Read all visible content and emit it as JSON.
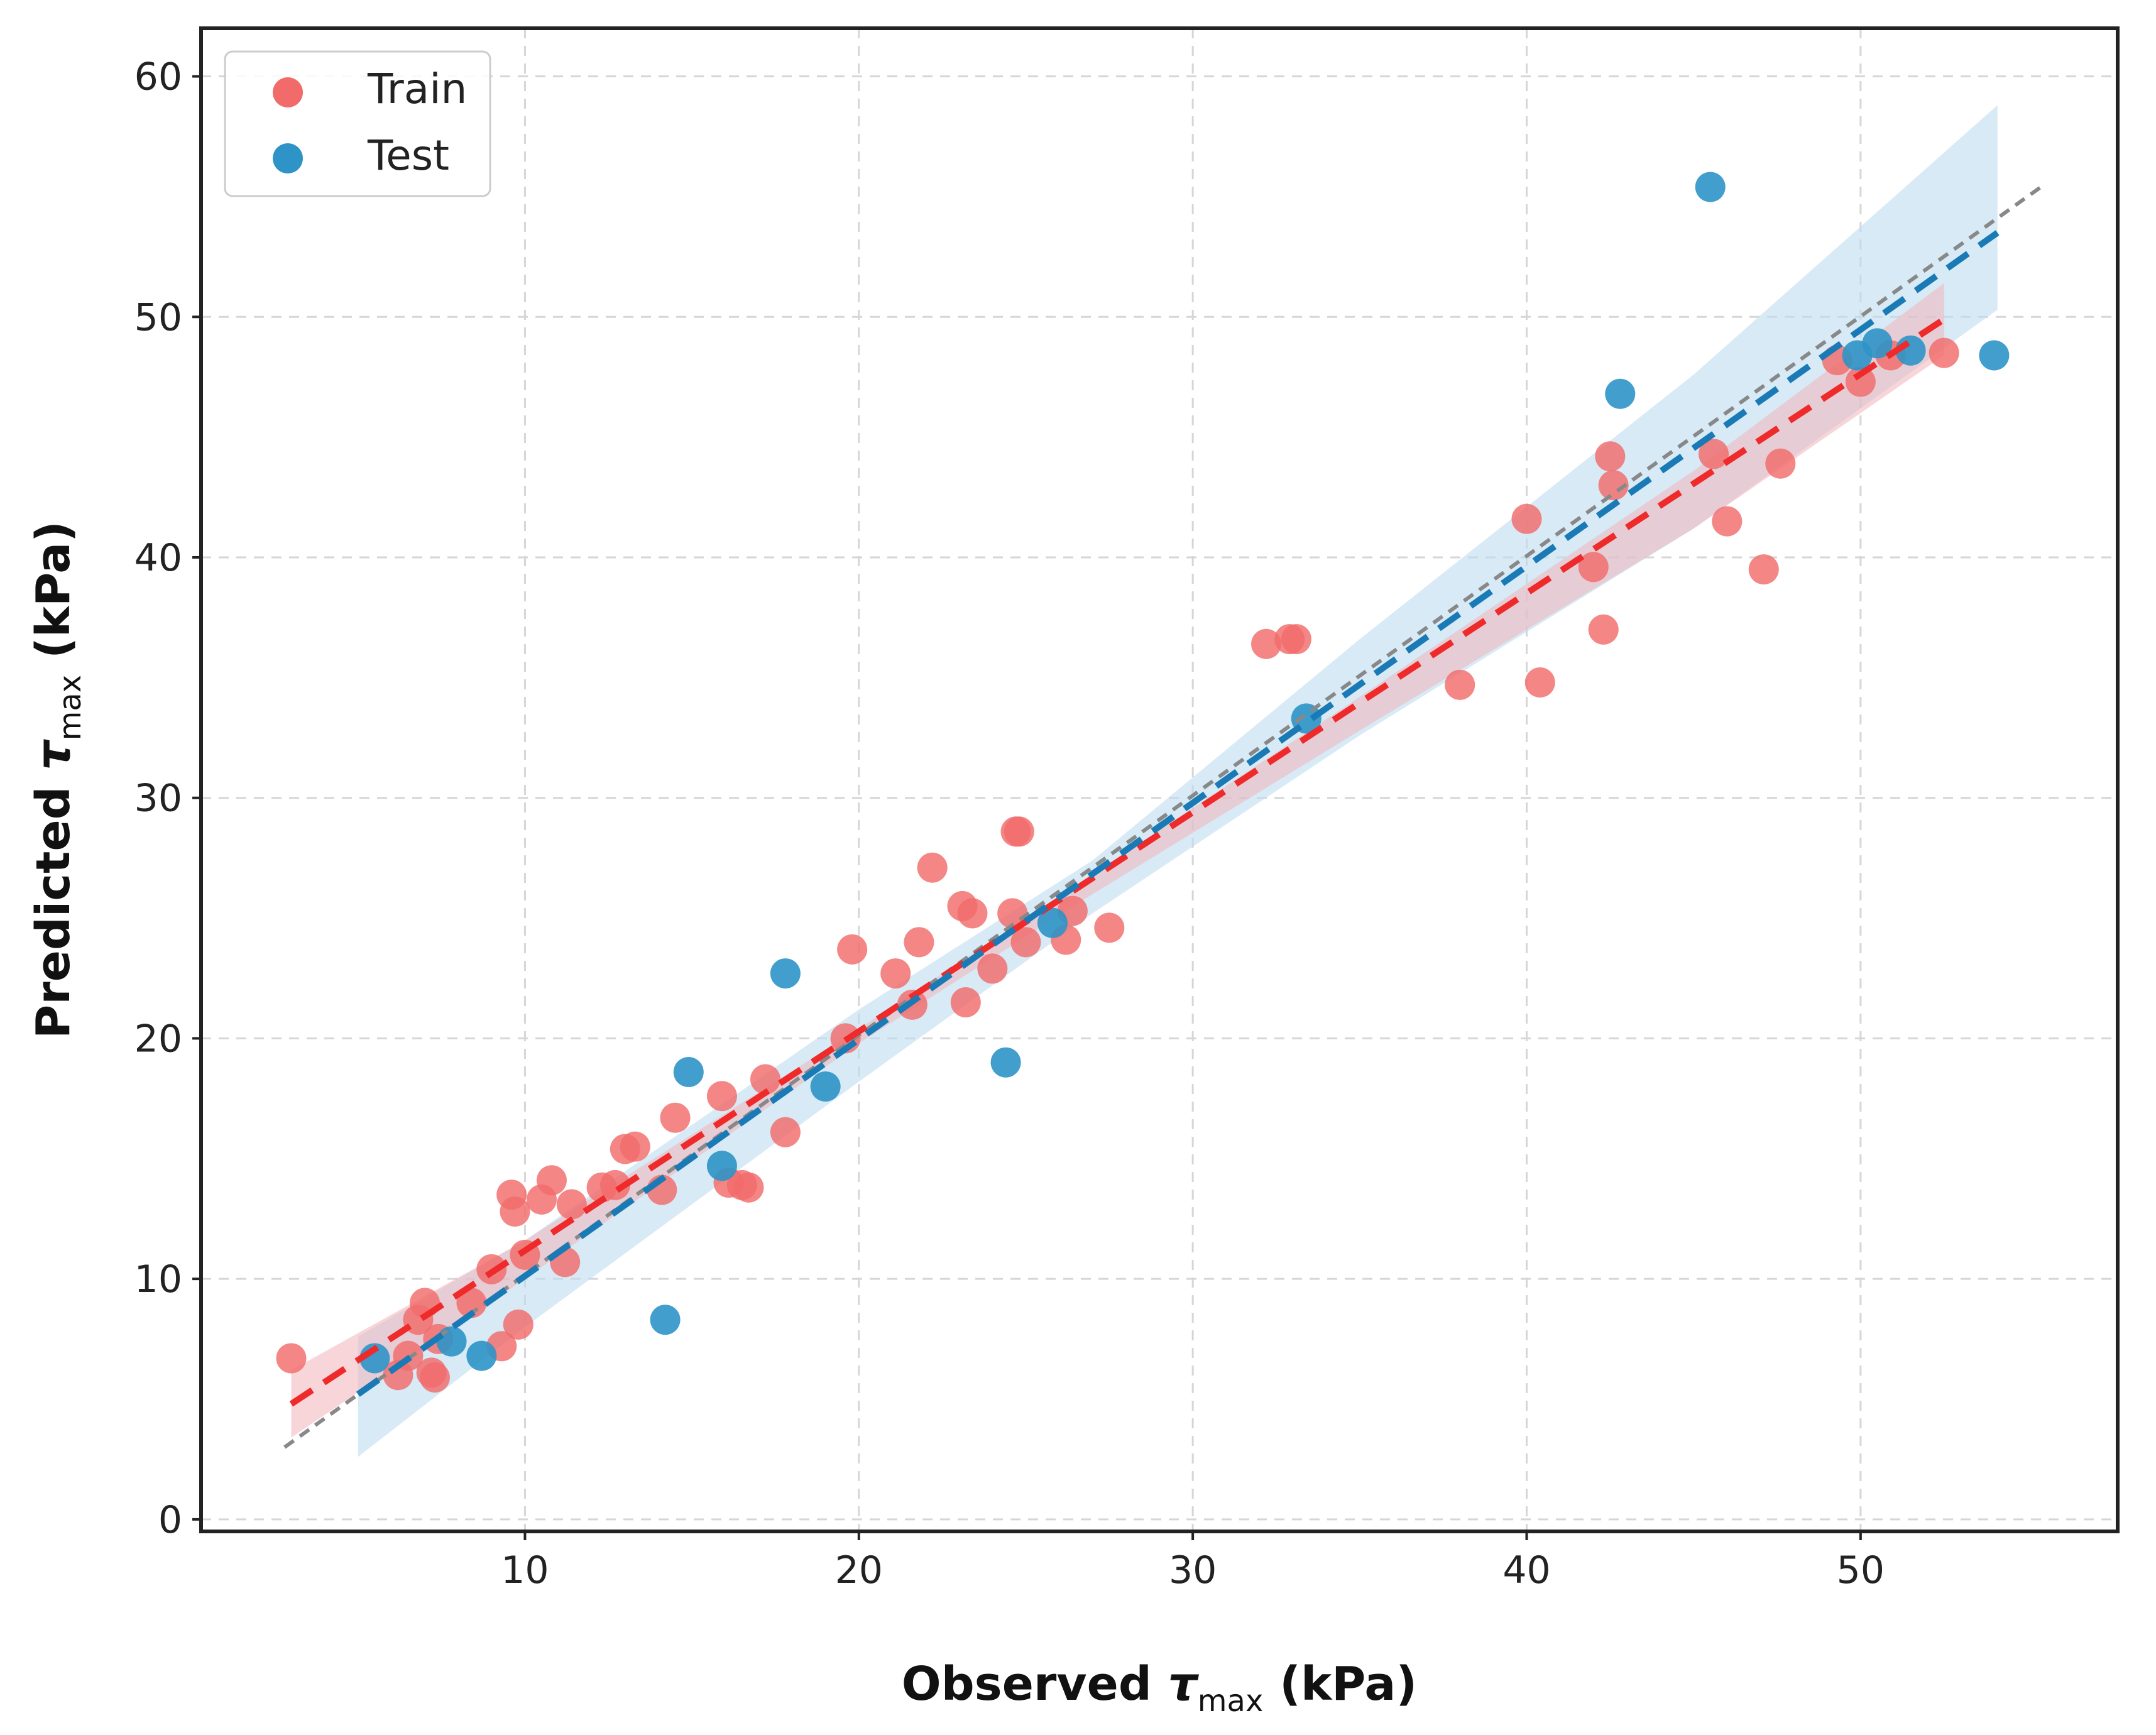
{
  "chart_data": {
    "type": "scatter",
    "title": "",
    "xlabel": {
      "prefix": "Observed ",
      "symbol": "τ",
      "subscript": "max",
      "unit": " (kPa)"
    },
    "ylabel": {
      "prefix": "Predicted ",
      "symbol": "τ",
      "subscript": "max",
      "unit": " (kPa)"
    },
    "xlim": [
      0.3,
      57.7
    ],
    "ylim": [
      -0.5,
      62
    ],
    "xticks": [
      10,
      20,
      30,
      40,
      50
    ],
    "yticks": [
      0,
      10,
      20,
      30,
      40,
      50,
      60
    ],
    "grid": true,
    "legend_position": "top-left",
    "colors": {
      "train": "#f26b6b",
      "test": "#2e93c6",
      "train_fit": "#ee2a2a",
      "test_fit": "#1a7ab5",
      "train_band": "#f3b3b8",
      "test_band": "#bcdcef",
      "identity": "#888888"
    },
    "series": [
      {
        "name": "Train",
        "points": [
          [
            3.0,
            6.7
          ],
          [
            6.2,
            6.0
          ],
          [
            6.5,
            6.8
          ],
          [
            6.8,
            8.3
          ],
          [
            7.0,
            9.0
          ],
          [
            7.2,
            6.1
          ],
          [
            7.3,
            5.9
          ],
          [
            7.4,
            7.5
          ],
          [
            8.4,
            9.0
          ],
          [
            9.0,
            10.4
          ],
          [
            9.3,
            7.2
          ],
          [
            9.6,
            13.5
          ],
          [
            9.7,
            12.8
          ],
          [
            9.8,
            8.1
          ],
          [
            10.0,
            11.0
          ],
          [
            10.5,
            13.3
          ],
          [
            10.8,
            14.1
          ],
          [
            11.2,
            10.7
          ],
          [
            11.4,
            13.1
          ],
          [
            12.3,
            13.8
          ],
          [
            12.7,
            13.9
          ],
          [
            13.0,
            15.4
          ],
          [
            13.3,
            15.5
          ],
          [
            14.1,
            13.7
          ],
          [
            14.5,
            16.7
          ],
          [
            15.9,
            17.6
          ],
          [
            16.1,
            14.0
          ],
          [
            16.5,
            13.9
          ],
          [
            16.7,
            13.8
          ],
          [
            17.2,
            18.3
          ],
          [
            17.8,
            16.1
          ],
          [
            19.6,
            20.0
          ],
          [
            19.8,
            23.7
          ],
          [
            21.1,
            22.7
          ],
          [
            21.6,
            21.4
          ],
          [
            21.8,
            24.0
          ],
          [
            22.2,
            27.1
          ],
          [
            23.1,
            25.5
          ],
          [
            23.2,
            21.5
          ],
          [
            23.4,
            25.2
          ],
          [
            24.0,
            22.9
          ],
          [
            24.6,
            25.2
          ],
          [
            24.7,
            28.6
          ],
          [
            24.8,
            28.6
          ],
          [
            25.0,
            24.0
          ],
          [
            26.2,
            24.1
          ],
          [
            26.4,
            25.3
          ],
          [
            27.5,
            24.6
          ],
          [
            32.2,
            36.4
          ],
          [
            32.9,
            36.6
          ],
          [
            33.1,
            36.6
          ],
          [
            38.0,
            34.7
          ],
          [
            40.0,
            41.6
          ],
          [
            40.4,
            34.8
          ],
          [
            42.0,
            39.6
          ],
          [
            42.3,
            37.0
          ],
          [
            42.5,
            44.2
          ],
          [
            42.6,
            43.0
          ],
          [
            45.6,
            44.3
          ],
          [
            46.0,
            41.5
          ],
          [
            47.1,
            39.5
          ],
          [
            47.6,
            43.9
          ],
          [
            49.3,
            48.2
          ],
          [
            50.0,
            47.3
          ],
          [
            50.9,
            48.4
          ],
          [
            52.5,
            48.5
          ]
        ]
      },
      {
        "name": "Test",
        "points": [
          [
            5.5,
            6.7
          ],
          [
            7.8,
            7.4
          ],
          [
            8.7,
            6.8
          ],
          [
            14.2,
            8.3
          ],
          [
            14.9,
            18.6
          ],
          [
            15.9,
            14.7
          ],
          [
            17.8,
            22.7
          ],
          [
            19.0,
            18.0
          ],
          [
            24.4,
            19.0
          ],
          [
            25.8,
            24.8
          ],
          [
            33.4,
            33.3
          ],
          [
            42.8,
            46.8
          ],
          [
            45.5,
            55.4
          ],
          [
            49.9,
            48.4
          ],
          [
            50.5,
            48.9
          ],
          [
            51.5,
            48.6
          ],
          [
            54.0,
            48.4
          ]
        ]
      }
    ],
    "train_fit": {
      "x": [
        3.0,
        52.5
      ],
      "y": [
        4.8,
        49.9
      ]
    },
    "test_fit": {
      "x": [
        5.0,
        54.1
      ],
      "y": [
        5.2,
        53.5
      ]
    },
    "identity_line": {
      "x": [
        2.8,
        55.4
      ],
      "y": [
        3.0,
        55.4
      ]
    },
    "train_band": {
      "x": [
        3.0,
        10.0,
        20.0,
        27.0,
        35.0,
        45.0,
        52.5
      ],
      "upper": [
        6.2,
        11.6,
        20.4,
        26.8,
        34.2,
        43.6,
        51.4
      ],
      "lower": [
        3.4,
        10.0,
        19.8,
        26.0,
        32.8,
        41.2,
        48.4
      ]
    },
    "test_band": {
      "x": [
        5.0,
        10.0,
        20.0,
        27.0,
        35.0,
        45.0,
        54.1
      ],
      "upper": [
        7.6,
        11.6,
        21.2,
        27.4,
        36.6,
        47.6,
        58.8
      ],
      "lower": [
        2.6,
        8.0,
        18.2,
        25.2,
        32.6,
        41.2,
        50.3
      ]
    },
    "legend": [
      {
        "label": "Train",
        "key": "train"
      },
      {
        "label": "Test",
        "key": "test"
      }
    ]
  }
}
